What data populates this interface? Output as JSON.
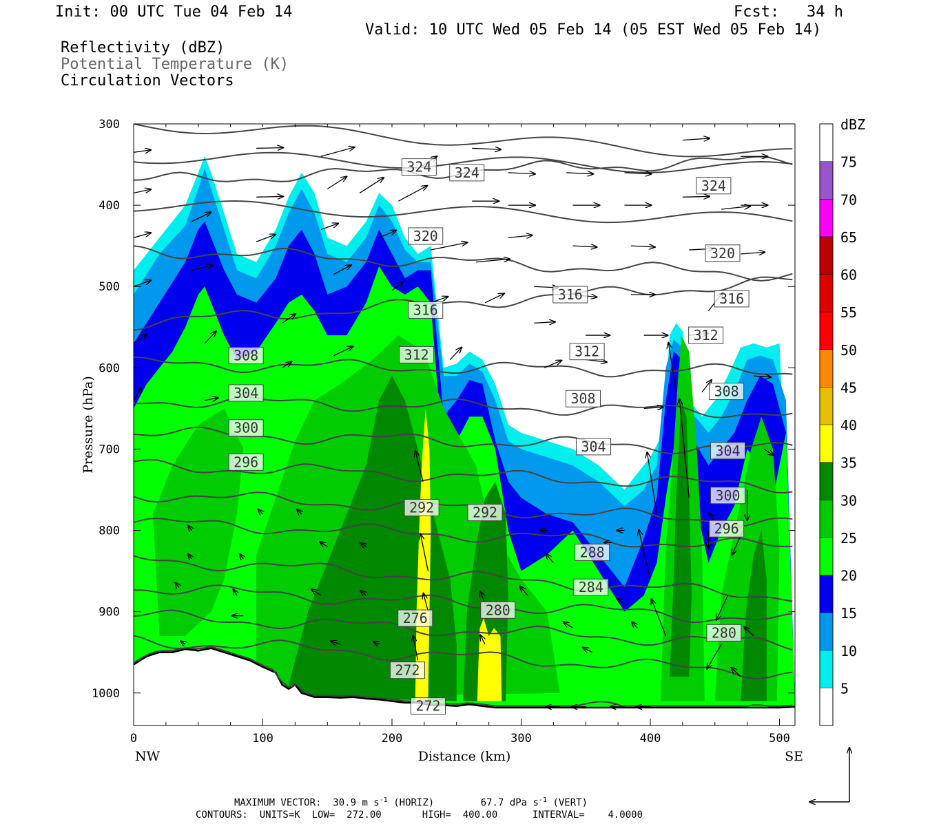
{
  "header": {
    "init": "Init: 00 UTC Tue 04 Feb 14",
    "fcst": "Fcst:   34 h",
    "valid": "Valid: 10 UTC Wed 05 Feb 14 (05 EST Wed 05 Feb 14)",
    "fields": [
      "Reflectivity (dBZ)",
      "Potential Temperature (K)",
      "Circulation Vectors"
    ]
  },
  "footer": {
    "max_vector_label": "MAXIMUM VECTOR:",
    "max_horiz": "30.9 m s",
    "horiz_tag": "(HORIZ)",
    "max_vert": "67.7 dPa s",
    "vert_tag": "(VERT)",
    "contours": "CONTOURS:  UNITS=K  LOW=  272.00       HIGH=  400.00      INTERVAL=    4.0000"
  },
  "chart_data": {
    "type": "cross-section",
    "xlabel": "Distance (km)",
    "ylabel": "Pressure (hPa)",
    "xlim": [
      0,
      512
    ],
    "ylim": [
      1040,
      300
    ],
    "x_ticks": [
      0,
      100,
      200,
      300,
      400,
      500
    ],
    "y_ticks": [
      300,
      400,
      500,
      600,
      700,
      800,
      900,
      1000
    ],
    "x_end_labels": {
      "left": "NW",
      "right": "SE"
    },
    "colorbar": {
      "unit": "dBZ",
      "levels": [
        5,
        10,
        15,
        20,
        25,
        30,
        35,
        40,
        45,
        50,
        55,
        60,
        65,
        70,
        75
      ],
      "colors": [
        "#ffffff",
        "#00eeee",
        "#0099ee",
        "#0000ee",
        "#00ff00",
        "#00cc00",
        "#008800",
        "#ffff00",
        "#e6c000",
        "#ff8800",
        "#ff0000",
        "#dd0000",
        "#bb0000",
        "#ff00ff",
        "#9955cc",
        "#ffffff"
      ]
    },
    "reflectivity_colors": {
      "5": "#00eeee",
      "10": "#0099ee",
      "15": "#0000ee",
      "20": "#00ff00",
      "25": "#00cc00",
      "30": "#008800",
      "35": "#ffff00"
    },
    "reflectivity_echo_top_5dBZ": {
      "x": [
        0,
        20,
        40,
        50,
        55,
        60,
        70,
        80,
        95,
        110,
        120,
        130,
        140,
        150,
        165,
        180,
        190,
        200,
        210,
        220,
        230,
        240,
        250,
        260,
        270,
        280,
        290,
        300,
        320,
        340,
        360,
        380,
        400,
        410,
        415,
        420,
        425,
        430,
        440,
        450,
        460,
        470,
        480,
        490,
        500,
        512
      ],
      "p": [
        480,
        440,
        400,
        360,
        340,
        360,
        410,
        460,
        470,
        430,
        390,
        360,
        385,
        440,
        450,
        420,
        385,
        400,
        440,
        460,
        450,
        600,
        595,
        580,
        590,
        620,
        670,
        680,
        690,
        700,
        720,
        750,
        710,
        680,
        560,
        545,
        555,
        640,
        660,
        640,
        610,
        575,
        570,
        575,
        570,
        1010
      ]
    },
    "theta_contour_levels": [
      272,
      276,
      280,
      284,
      288,
      292,
      296,
      300,
      304,
      308,
      312,
      316,
      320,
      324
    ],
    "theta_labels": [
      {
        "x": 228,
        "p": 1016,
        "text": "272"
      },
      {
        "x": 212,
        "p": 972,
        "text": "272"
      },
      {
        "x": 218,
        "p": 908,
        "text": "276"
      },
      {
        "x": 282,
        "p": 898,
        "text": "280"
      },
      {
        "x": 457,
        "p": 926,
        "text": "280"
      },
      {
        "x": 354,
        "p": 870,
        "text": "284"
      },
      {
        "x": 355,
        "p": 827,
        "text": "288"
      },
      {
        "x": 223,
        "p": 772,
        "text": "292"
      },
      {
        "x": 272,
        "p": 778,
        "text": "292"
      },
      {
        "x": 459,
        "p": 798,
        "text": "296"
      },
      {
        "x": 87,
        "p": 716,
        "text": "296"
      },
      {
        "x": 460,
        "p": 757,
        "text": "300"
      },
      {
        "x": 87,
        "p": 674,
        "text": "300"
      },
      {
        "x": 460,
        "p": 702,
        "text": "304"
      },
      {
        "x": 356,
        "p": 697,
        "text": "304"
      },
      {
        "x": 87,
        "p": 631,
        "text": "304"
      },
      {
        "x": 348,
        "p": 638,
        "text": "308"
      },
      {
        "x": 459,
        "p": 629,
        "text": "308"
      },
      {
        "x": 87,
        "p": 585,
        "text": "308"
      },
      {
        "x": 219,
        "p": 584,
        "text": "312"
      },
      {
        "x": 351,
        "p": 580,
        "text": "312"
      },
      {
        "x": 443,
        "p": 560,
        "text": "312"
      },
      {
        "x": 226,
        "p": 529,
        "text": "316"
      },
      {
        "x": 338,
        "p": 510,
        "text": "316"
      },
      {
        "x": 463,
        "p": 515,
        "text": "316"
      },
      {
        "x": 226,
        "p": 438,
        "text": "320"
      },
      {
        "x": 456,
        "p": 459,
        "text": "320"
      },
      {
        "x": 221,
        "p": 353,
        "text": "324"
      },
      {
        "x": 258,
        "p": 360,
        "text": "324"
      },
      {
        "x": 449,
        "p": 376,
        "text": "324"
      }
    ],
    "max_vector": {
      "horiz_ms": 30.9,
      "vert_dPa_s": 67.7
    },
    "contour_info": {
      "units": "K",
      "low": 272.0,
      "high": 400.0,
      "interval": 4.0
    }
  }
}
